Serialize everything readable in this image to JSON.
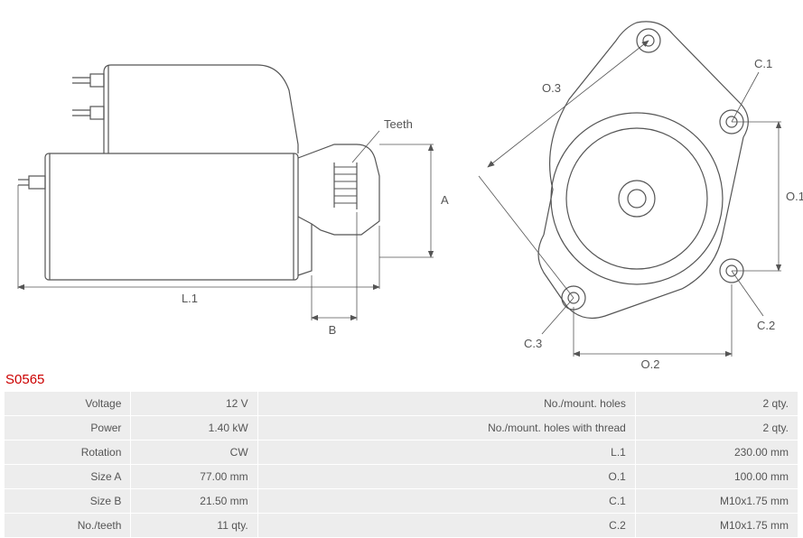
{
  "product_code": "S0565",
  "diagram": {
    "stroke_color": "#555555",
    "stroke_width": 1.2,
    "label_color": "#555555",
    "label_fontsize": 13,
    "side_view": {
      "labels": {
        "teeth": "Teeth",
        "L1": "L.1",
        "A": "A",
        "B": "B"
      }
    },
    "front_view": {
      "labels": {
        "O1": "O.1",
        "O2": "O.2",
        "O3": "O.3",
        "C1": "C.1",
        "C2": "C.2",
        "C3": "C.3"
      }
    }
  },
  "specs": {
    "rows": [
      {
        "label_l": "Voltage",
        "value_l": "12 V",
        "label_r": "No./mount. holes",
        "value_r": "2 qty."
      },
      {
        "label_l": "Power",
        "value_l": "1.40 kW",
        "label_r": "No./mount. holes with thread",
        "value_r": "2 qty."
      },
      {
        "label_l": "Rotation",
        "value_l": "CW",
        "label_r": "L.1",
        "value_r": "230.00 mm"
      },
      {
        "label_l": "Size A",
        "value_l": "77.00 mm",
        "label_r": "O.1",
        "value_r": "100.00 mm"
      },
      {
        "label_l": "Size B",
        "value_l": "21.50 mm",
        "label_r": "C.1",
        "value_r": "M10x1.75 mm"
      },
      {
        "label_l": "No./teeth",
        "value_l": "11 qty.",
        "label_r": "C.2",
        "value_r": "M10x1.75 mm"
      }
    ]
  }
}
